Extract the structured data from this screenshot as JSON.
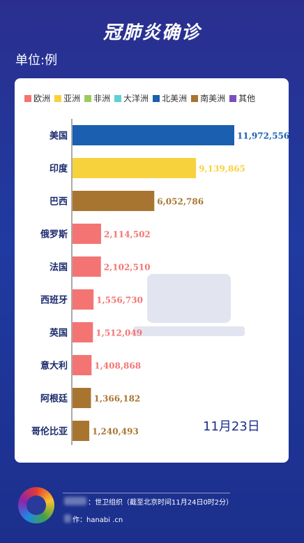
{
  "header": {
    "title": "冠肺炎确诊",
    "unit": "单位:例"
  },
  "legend": [
    {
      "label": "欧洲",
      "color": "#f47474"
    },
    {
      "label": "亚洲",
      "color": "#f7d23c"
    },
    {
      "label": "非洲",
      "color": "#9acd5a"
    },
    {
      "label": "大洋洲",
      "color": "#5fd0d0"
    },
    {
      "label": "北美洲",
      "color": "#1a5fb0"
    },
    {
      "label": "南美洲",
      "color": "#a87530"
    },
    {
      "label": "其他",
      "color": "#7a4fc0"
    }
  ],
  "date_label": "11月23日",
  "footer": {
    "source_suffix": "：世卫组织（截至北京时间11月24日0时2分）",
    "producer_suffix": "作：hanabi  .cn"
  },
  "chart_data": {
    "type": "bar",
    "orientation": "horizontal",
    "categories": [
      "美国",
      "印度",
      "巴西",
      "俄罗斯",
      "法国",
      "西班牙",
      "英国",
      "意大利",
      "阿根廷",
      "哥伦比亚"
    ],
    "values": [
      11972556,
      9139865,
      6052786,
      2114502,
      2102510,
      1556730,
      1512049,
      1408868,
      1366182,
      1240493
    ],
    "value_labels": [
      "11,972,556",
      "9,139,865",
      "6,052,786",
      "2,114,502",
      "2,102,510",
      "1,556,730",
      "1,512,049",
      "1,408,868",
      "1,366,182",
      "1,240,493"
    ],
    "regions": [
      "北美洲",
      "亚洲",
      "南美洲",
      "欧洲",
      "欧洲",
      "欧洲",
      "欧洲",
      "欧洲",
      "南美洲",
      "南美洲"
    ],
    "colors": [
      "#1a5fb0",
      "#f7d23c",
      "#a87530",
      "#f47474",
      "#f47474",
      "#f47474",
      "#f47474",
      "#f47474",
      "#a87530",
      "#a87530"
    ],
    "label_colors": [
      "#1a5fb0",
      "#f7d23c",
      "#a87530",
      "#f47474",
      "#f47474",
      "#f47474",
      "#f47474",
      "#f47474",
      "#a87530",
      "#a87530"
    ],
    "xlim": [
      0,
      11972556
    ]
  }
}
